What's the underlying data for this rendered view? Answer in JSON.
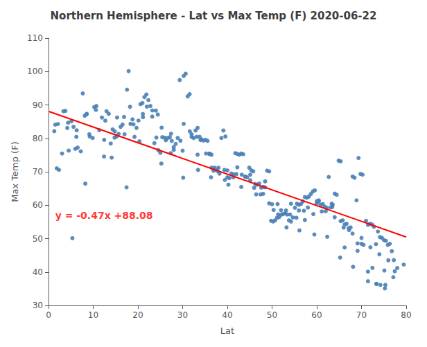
{
  "chart_data": {
    "type": "scatter",
    "title": "Northern Hemisphere - Lat vs Max Temp (F) 2020-06-22",
    "x_label": "Lat",
    "y_label": "Max Temp (F)",
    "xlim": [
      0,
      80
    ],
    "ylim": [
      30,
      110
    ],
    "xticks": [
      0,
      10,
      20,
      30,
      40,
      50,
      60,
      70,
      80
    ],
    "yticks": [
      30,
      40,
      50,
      60,
      70,
      80,
      90,
      100,
      110
    ],
    "grid": false,
    "annotations": [
      {
        "text": "y = -0.47x +88.08",
        "x": 1.5,
        "y": 57,
        "color": "red"
      }
    ],
    "series": [
      {
        "type": "scatter",
        "color": "#4a7fb5",
        "x": [
          1.49,
          1.29,
          1.84,
          2.33,
          3.03,
          3.77,
          4.38,
          4.51,
          5.13,
          5.59,
          5.99,
          6.51,
          7.22,
          7.66,
          8.1,
          8.55,
          9.22,
          9.87,
          10.23,
          10.71,
          11.35,
          11.94,
          12.41,
          12.97,
          13.47,
          13.91,
          14.34,
          14.78,
          15.23,
          15.67,
          16.12,
          16.56,
          17.01,
          17.55,
          17.92,
          18.34,
          18.79,
          19.23,
          19.68,
          20.12,
          20.56,
          21.01,
          21.45,
          21.89,
          22.34,
          22.78,
          23.23,
          23.67,
          24.12,
          24.56,
          25.01,
          25.45,
          26.23,
          26.67,
          27.12,
          27.56,
          28.01,
          28.45,
          28.89,
          29.34,
          30.23,
          30.67,
          31.12,
          31.56,
          32.01,
          32.45,
          32.89,
          33.34,
          33.78,
          34.23,
          34.67,
          35.12,
          35.56,
          36.01,
          36.45,
          36.89,
          37.34,
          37.78,
          38.23,
          38.67,
          39.12,
          39.56,
          40.01,
          40.45,
          40.89,
          41.34,
          41.78,
          42.23,
          42.67,
          43.12,
          43.56,
          44.01,
          44.45,
          44.89,
          45.34,
          45.78,
          46.23,
          46.67,
          47.12,
          47.56,
          48.01,
          48.45,
          48.89,
          49.34,
          49.78,
          50.23,
          50.67,
          51.12,
          51.56,
          52.01,
          52.45,
          52.89,
          53.34,
          53.78,
          54.23,
          54.67,
          55.12,
          55.56,
          56.01,
          56.45,
          56.89,
          57.34,
          57.78,
          58.23,
          58.67,
          59.12,
          59.56,
          60.01,
          60.45,
          60.89,
          61.34,
          61.78,
          62.23,
          62.67,
          63.12,
          63.56,
          64.01,
          64.45,
          64.89,
          65.34,
          65.78,
          66.23,
          66.67,
          67.12,
          67.56,
          68.01,
          68.45,
          68.89,
          69.34,
          69.78,
          70.23,
          70.01,
          70.45,
          71.01,
          71.45,
          71.89,
          72.34,
          72.78,
          73.23,
          73.67,
          74.12,
          74.56,
          75.01,
          75.45,
          75.89,
          76.34,
          76.78,
          77.23,
          5.34,
          8.23,
          14.12,
          17.45,
          20.34,
          25.23,
          30.12,
          33.45,
          36.34,
          40.23,
          43.12,
          46.45,
          50.34,
          53.23,
          56.12,
          59.45,
          62.34,
          65.23,
          68.12,
          71.45,
          73.34,
          75.23,
          77.12,
          79.45,
          3.34,
          6.23,
          9.12,
          12.45,
          15.34,
          18.23,
          21.12,
          24.45,
          27.34,
          30.23,
          33.12,
          36.45,
          39.34,
          42.23,
          45.12,
          48.45,
          51.34,
          54.23,
          57.12,
          60.45,
          63.34,
          66.23,
          69.12,
          72.45,
          75.34,
          33.34,
          35.23,
          37.12,
          39.45,
          41.34,
          43.23,
          45.12,
          47.45,
          49.34,
          51.23,
          53.12,
          55.45,
          57.34,
          59.23,
          61.12,
          63.45,
          65.34,
          67.23,
          69.12,
          71.45,
          73.34,
          74.23,
          75.12,
          77.45,
          2.1,
          4.2,
          6.3,
          8.5,
          10.6,
          12.7,
          14.8,
          16.9,
          19.0,
          21.1,
          23.2,
          25.3,
          27.4,
          29.5,
          31.6,
          22.0,
          24.0,
          26.0,
          28.0,
          30.0,
          32.0,
          34.0,
          36.0,
          38.0,
          40.0,
          42.0,
          44.0,
          46.0,
          48.0,
          50.0,
          52.0,
          54.0,
          56.0,
          58.0,
          60.0,
          62.0,
          64.0,
          66.0,
          68.0,
          70.0,
          72.0,
          74.0,
          76.0,
          78.0
        ],
        "values": [
          84.09,
          82.15,
          71.03,
          70.57,
          75.45,
          88.23,
          84.67,
          76.34,
          85.12,
          83.45,
          76.87,
          77.23,
          76.11,
          93.45,
          86.78,
          87.34,
          80.56,
          80.12,
          89.34,
          89.67,
          82.45,
          86.23,
          74.56,
          88.12,
          87.34,
          78.45,
          82.67,
          80.23,
          80.56,
          81.34,
          83.45,
          84.12,
          81.23,
          94.56,
          100.12,
          84.34,
          85.67,
          80.45,
          83.12,
          85.34,
          90.23,
          90.56,
          92.34,
          93.12,
          91.45,
          89.67,
          88.34,
          78.56,
          80.23,
          76.45,
          75.67,
          80.34,
          79.45,
          80.12,
          80.34,
          79.23,
          76.56,
          78.34,
          80.12,
          97.45,
          98.67,
          99.34,
          92.56,
          93.23,
          80.45,
          80.12,
          82.34,
          83.12,
          80.45,
          79.67,
          79.34,
          79.56,
          79.23,
          75.45,
          75.12,
          70.34,
          70.56,
          70.23,
          69.45,
          80.12,
          82.34,
          80.56,
          68.34,
          68.12,
          69.45,
          69.23,
          75.56,
          75.34,
          75.12,
          75.45,
          75.23,
          68.56,
          68.34,
          71.23,
          70.45,
          70.12,
          66.34,
          66.12,
          66.45,
          65.23,
          65.45,
          67.12,
          70.34,
          70.12,
          55.34,
          55.12,
          55.45,
          56.23,
          56.45,
          57.12,
          57.34,
          57.56,
          57.23,
          55.45,
          55.12,
          56.34,
          59.23,
          60.45,
          60.12,
          60.34,
          61.12,
          62.45,
          62.23,
          62.56,
          63.34,
          64.12,
          64.45,
          61.23,
          61.45,
          60.12,
          60.34,
          59.56,
          59.23,
          68.45,
          59.34,
          60.12,
          63.45,
          63.12,
          73.34,
          73.12,
          55.45,
          54.23,
          54.45,
          53.12,
          53.34,
          68.56,
          68.23,
          61.45,
          74.12,
          69.34,
          69.12,
          48.45,
          48.12,
          55.34,
          54.12,
          54.45,
          54.23,
          53.56,
          48.34,
          52.12,
          50.45,
          50.23,
          49.56,
          49.34,
          48.12,
          48.45,
          46.23,
          43.56,
          50.12,
          66.45,
          74.23,
          65.34,
          79.12,
          72.45,
          68.23,
          70.56,
          68.34,
          66.12,
          65.45,
          63.23,
          58.56,
          53.34,
          52.45,
          51.23,
          50.56,
          44.34,
          41.56,
          37.23,
          36.45,
          35.12,
          38.45,
          42.23,
          88.12,
          80.45,
          81.23,
          79.56,
          86.23,
          89.45,
          86.34,
          87.12,
          75.56,
          84.34,
          80.45,
          71.23,
          70.56,
          71.34,
          69.12,
          65.34,
          57.23,
          60.45,
          58.34,
          61.12,
          60.45,
          47.34,
          48.56,
          41.23,
          36.12,
          75.12,
          75.45,
          71.23,
          67.56,
          68.34,
          69.12,
          67.45,
          63.23,
          60.56,
          60.34,
          58.45,
          56.23,
          55.56,
          57.34,
          58.12,
          59.45,
          55.23,
          52.56,
          46.34,
          40.12,
          36.45,
          36.12,
          40.45,
          40.23,
          84.3,
          83.1,
          82.4,
          87.2,
          88.5,
          85.3,
          82.1,
          86.4,
          84.2,
          87.3,
          86.5,
          83.2,
          81.4,
          79.3,
          82.1,
          89.5,
          88.3,
          80.2,
          77.4,
          76.3,
          81.2,
          79.5,
          75.3,
          71.2,
          70.4,
          69.3,
          68.5,
          65.2,
          63.4,
          60.3,
          58.5,
          57.2,
          58.4,
          59.3,
          60.5,
          58.2,
          56.4,
          53.3,
          51.5,
          50.2,
          47.4,
          45.3,
          43.5,
          41.2
        ]
      },
      {
        "type": "line",
        "color": "red",
        "x": [
          0,
          80
        ],
        "values": [
          88.08,
          50.48
        ]
      }
    ]
  }
}
